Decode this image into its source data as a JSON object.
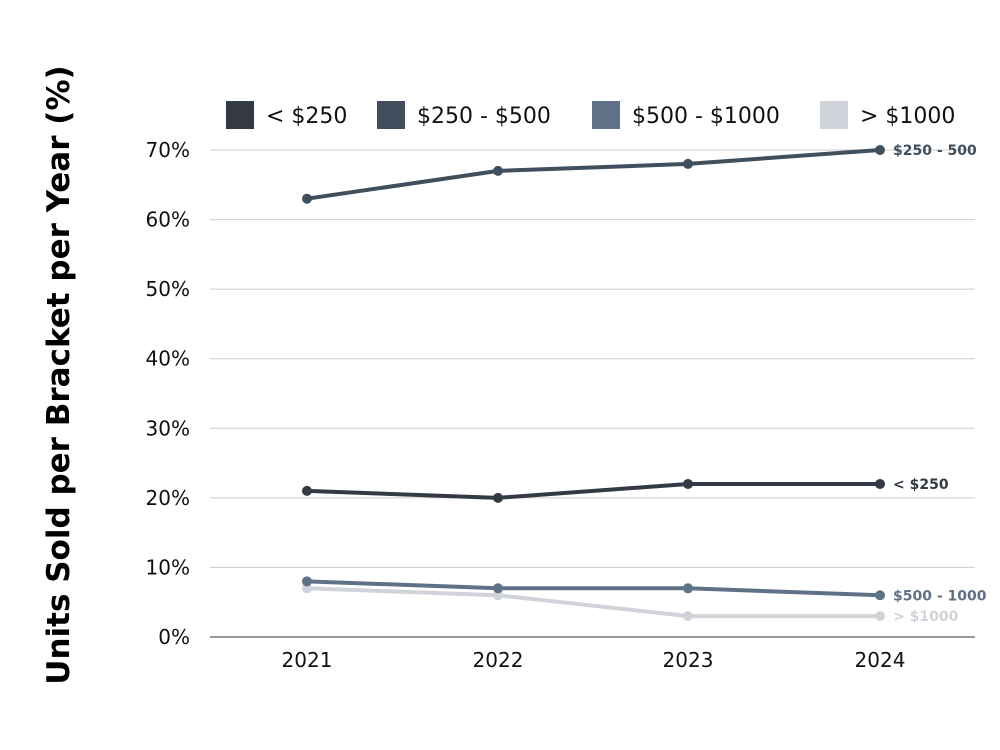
{
  "chart_data": {
    "type": "line",
    "title": "",
    "xlabel": "",
    "ylabel": "Units Sold per Bracket per Year (%)",
    "x": [
      "2021",
      "2022",
      "2023",
      "2024"
    ],
    "y_ticks": [
      "0%",
      "10%",
      "20%",
      "30%",
      "40%",
      "50%",
      "60%",
      "70%"
    ],
    "ylim": [
      0,
      70
    ],
    "grid": true,
    "legend_position": "top",
    "series": [
      {
        "name": "< $250",
        "color": "#333a45",
        "values": [
          21,
          20,
          22,
          22
        ],
        "end_label": "< $250"
      },
      {
        "name": "$250 - $500",
        "color": "#3f4f5d",
        "values": [
          63,
          67,
          68,
          70
        ],
        "end_label": "$250 - 500"
      },
      {
        "name": "$500 - $1000",
        "color": "#5f7187",
        "values": [
          8,
          7,
          7,
          6
        ],
        "end_label": "$500 - 1000"
      },
      {
        "name": "> $1000",
        "color": "#d0d3d9",
        "values": [
          7,
          6,
          3,
          3
        ],
        "end_label": "> $1000"
      }
    ]
  }
}
